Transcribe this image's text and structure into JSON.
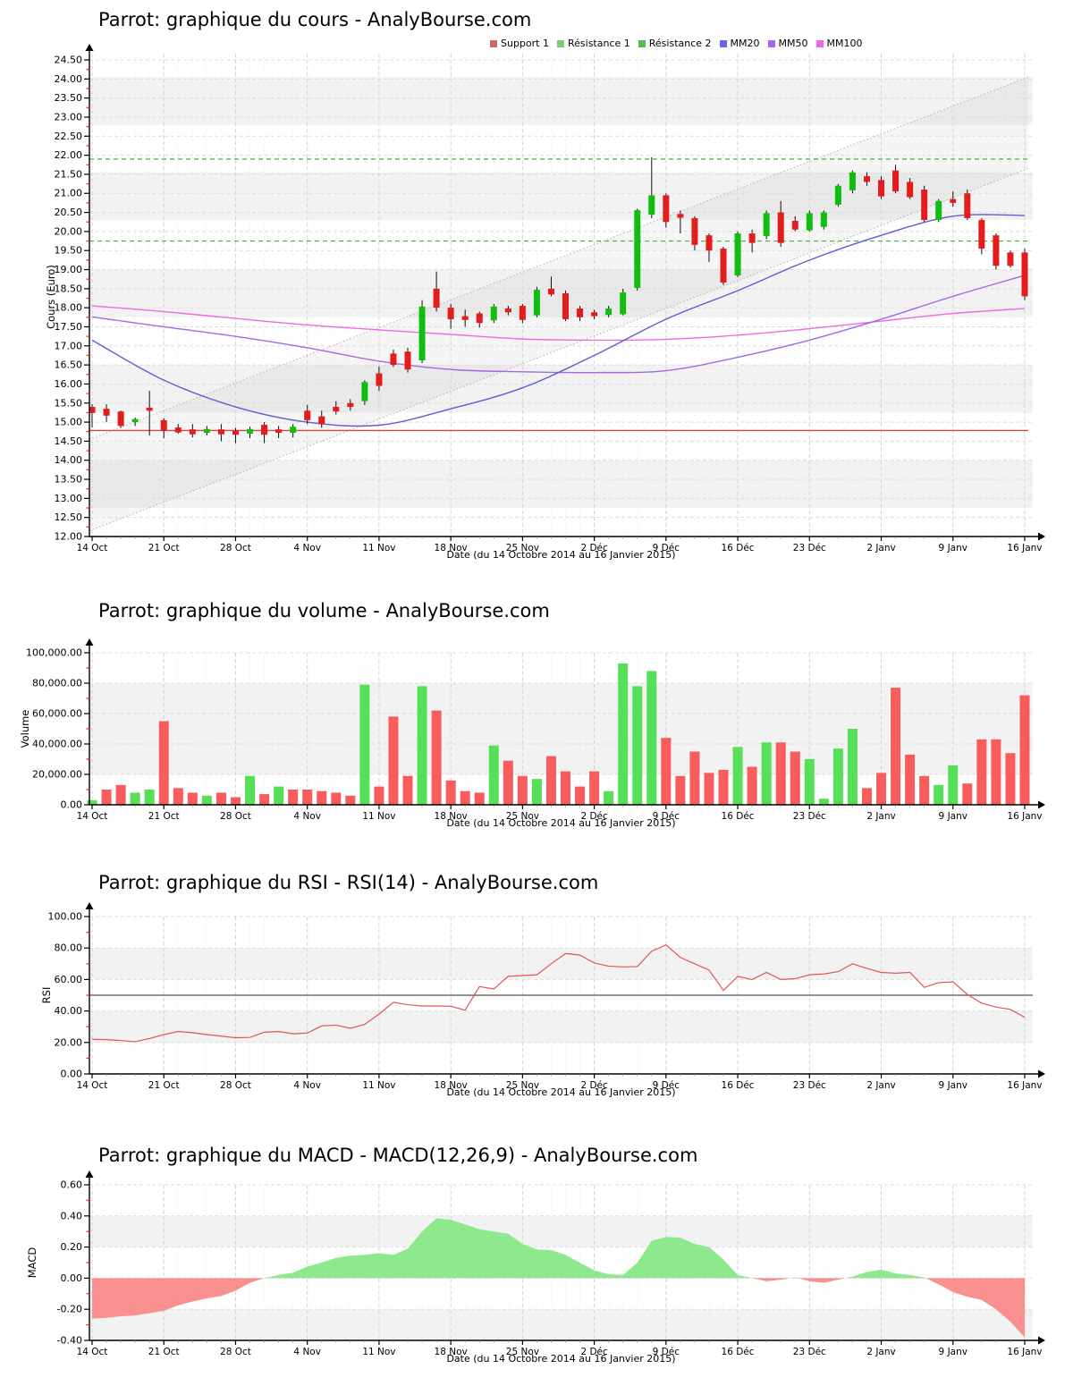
{
  "x_axis": {
    "label": "Date (du 14 Octobre 2014 au 16 Janvier 2015)",
    "tick_labels": [
      "14 Oct",
      "21 Oct",
      "28 Oct",
      "4 Nov",
      "11 Nov",
      "18 Nov",
      "25 Nov",
      "2 Déc",
      "9 Déc",
      "16 Déc",
      "23 Déc",
      "2 Janv",
      "9 Janv",
      "16 Janv"
    ],
    "tick_indices": [
      0,
      5,
      10,
      15,
      20,
      25,
      30,
      35,
      40,
      45,
      50,
      55,
      60,
      65
    ]
  },
  "legend": {
    "items": [
      {
        "label": "Support 1",
        "color": "#cc6666"
      },
      {
        "label": "Résistance 1",
        "color": "#77cc77"
      },
      {
        "label": "Résistance 2",
        "color": "#55bb55"
      },
      {
        "label": "MM20",
        "color": "#6666ee"
      },
      {
        "label": "MM50",
        "color": "#aa66ee"
      },
      {
        "label": "MM100",
        "color": "#ee66ee"
      }
    ]
  },
  "chart_data": [
    {
      "type": "candlestick",
      "title": "Parrot: graphique du cours - AnalyBourse.com",
      "ylabel": "Cours (Euro)",
      "ylim": [
        12.0,
        24.5
      ],
      "y_tick_step": 0.5,
      "y_tick_labels": [
        "24.50",
        "24.00",
        "23.50",
        "23.00",
        "22.50",
        "22.00",
        "21.50",
        "21.00",
        "20.50",
        "20.00",
        "19.50",
        "19.00",
        "18.50",
        "18.00",
        "17.50",
        "17.00",
        "16.50",
        "16.00",
        "15.50",
        "15.00",
        "14.50",
        "14.00",
        "13.50",
        "13.00",
        "12.50",
        "12.00"
      ],
      "up_color": "#12bd12",
      "down_color": "#e31c1c",
      "support1": 14.78,
      "resistance1": 19.75,
      "resistance2": 21.9,
      "channel": {
        "upper_start": 14.55,
        "upper_end": 24.05,
        "lower_start": 12.15,
        "lower_end": 21.65
      },
      "mm_sample_step": 5,
      "mm20": {
        "color": "#5d5dd8",
        "values": [
          17.15,
          16.1,
          15.4,
          15.0,
          14.92,
          15.35,
          15.9,
          16.75,
          17.7,
          18.45,
          19.25,
          19.9,
          20.4,
          20.42
        ]
      },
      "mm50": {
        "color": "#a06ae0",
        "values": [
          17.76,
          17.5,
          17.25,
          16.95,
          16.6,
          16.38,
          16.32,
          16.3,
          16.35,
          16.7,
          17.15,
          17.7,
          18.3,
          18.85
        ]
      },
      "mm100": {
        "color": "#ee6ae2",
        "values": [
          18.05,
          17.9,
          17.72,
          17.55,
          17.42,
          17.3,
          17.18,
          17.15,
          17.17,
          17.28,
          17.45,
          17.65,
          17.85,
          17.98
        ]
      },
      "candles": [
        [
          15.4,
          15.47,
          14.86,
          15.24
        ],
        [
          15.35,
          15.47,
          15.0,
          15.17
        ],
        [
          15.28,
          15.3,
          14.85,
          14.9
        ],
        [
          15.0,
          15.12,
          14.9,
          15.08
        ],
        [
          15.38,
          15.82,
          14.65,
          15.3
        ],
        [
          15.05,
          15.1,
          14.58,
          14.78
        ],
        [
          14.86,
          14.95,
          14.7,
          14.73
        ],
        [
          14.81,
          14.95,
          14.6,
          14.68
        ],
        [
          14.72,
          14.9,
          14.65,
          14.82
        ],
        [
          14.81,
          14.95,
          14.5,
          14.68
        ],
        [
          14.77,
          14.85,
          14.45,
          14.67
        ],
        [
          14.7,
          14.88,
          14.58,
          14.82
        ],
        [
          14.93,
          15.0,
          14.45,
          14.67
        ],
        [
          14.81,
          14.9,
          14.58,
          14.72
        ],
        [
          14.72,
          14.95,
          14.6,
          14.88
        ],
        [
          15.3,
          15.45,
          14.95,
          15.05
        ],
        [
          15.15,
          15.3,
          14.85,
          14.95
        ],
        [
          15.4,
          15.55,
          15.2,
          15.28
        ],
        [
          15.5,
          15.6,
          15.3,
          15.4
        ],
        [
          15.55,
          16.1,
          15.45,
          16.05
        ],
        [
          16.28,
          16.46,
          15.82,
          15.95
        ],
        [
          16.8,
          16.9,
          16.45,
          16.5
        ],
        [
          16.85,
          16.95,
          16.3,
          16.38
        ],
        [
          16.62,
          18.2,
          16.55,
          18.03
        ],
        [
          18.5,
          18.95,
          17.9,
          18.0
        ],
        [
          18.0,
          18.1,
          17.45,
          17.7
        ],
        [
          17.78,
          17.95,
          17.5,
          17.68
        ],
        [
          17.85,
          17.9,
          17.48,
          17.6
        ],
        [
          17.67,
          18.1,
          17.6,
          18.03
        ],
        [
          17.98,
          18.05,
          17.8,
          17.88
        ],
        [
          18.05,
          18.1,
          17.6,
          17.68
        ],
        [
          17.8,
          18.55,
          17.75,
          18.47
        ],
        [
          18.5,
          18.82,
          18.3,
          18.35
        ],
        [
          18.38,
          18.45,
          17.65,
          17.7
        ],
        [
          17.98,
          18.05,
          17.65,
          17.75
        ],
        [
          17.88,
          17.95,
          17.7,
          17.78
        ],
        [
          17.81,
          18.05,
          17.75,
          17.98
        ],
        [
          17.83,
          18.5,
          17.8,
          18.4
        ],
        [
          18.52,
          20.6,
          18.45,
          20.56
        ],
        [
          20.44,
          21.95,
          20.35,
          20.95
        ],
        [
          20.95,
          21.0,
          20.1,
          20.25
        ],
        [
          20.46,
          20.55,
          19.95,
          20.36
        ],
        [
          20.35,
          20.4,
          19.5,
          19.65
        ],
        [
          19.9,
          19.95,
          19.2,
          19.5
        ],
        [
          19.55,
          19.6,
          18.6,
          18.66
        ],
        [
          18.85,
          20.0,
          18.8,
          19.95
        ],
        [
          19.95,
          20.05,
          19.45,
          19.7
        ],
        [
          19.88,
          20.55,
          19.8,
          20.48
        ],
        [
          20.5,
          20.8,
          19.6,
          19.7
        ],
        [
          20.28,
          20.4,
          20.0,
          20.05
        ],
        [
          20.03,
          20.55,
          20.0,
          20.48
        ],
        [
          20.12,
          20.55,
          20.05,
          20.5
        ],
        [
          20.7,
          21.25,
          20.65,
          21.2
        ],
        [
          21.08,
          21.6,
          21.0,
          21.55
        ],
        [
          21.45,
          21.55,
          21.2,
          21.3
        ],
        [
          21.35,
          21.45,
          20.85,
          20.92
        ],
        [
          21.6,
          21.75,
          21.0,
          21.05
        ],
        [
          21.3,
          21.4,
          20.85,
          20.9
        ],
        [
          21.1,
          21.2,
          20.25,
          20.3
        ],
        [
          20.3,
          20.85,
          20.25,
          20.8
        ],
        [
          20.85,
          21.05,
          20.65,
          20.75
        ],
        [
          21.0,
          21.1,
          20.3,
          20.35
        ],
        [
          20.3,
          20.35,
          19.4,
          19.55
        ],
        [
          19.9,
          19.95,
          19.0,
          19.1
        ],
        [
          19.45,
          19.5,
          19.05,
          19.1
        ],
        [
          19.45,
          19.55,
          18.2,
          18.3
        ]
      ]
    },
    {
      "type": "bar",
      "title": "Parrot: graphique du volume - AnalyBourse.com",
      "ylabel": "Volume",
      "ylim": [
        0,
        100000
      ],
      "y_tick_labels": [
        "100,000.00",
        "80,000.00",
        "60,000.00",
        "40,000.00",
        "20,000.00",
        "0.00"
      ],
      "up_color": "#57e057",
      "down_color": "#f85c5c",
      "values": [
        [
          3000,
          "g"
        ],
        [
          10000,
          "r"
        ],
        [
          13000,
          "r"
        ],
        [
          8000,
          "g"
        ],
        [
          10000,
          "g"
        ],
        [
          55000,
          "r"
        ],
        [
          11000,
          "r"
        ],
        [
          8000,
          "r"
        ],
        [
          6000,
          "g"
        ],
        [
          8000,
          "r"
        ],
        [
          5000,
          "r"
        ],
        [
          19000,
          "g"
        ],
        [
          7000,
          "r"
        ],
        [
          12000,
          "g"
        ],
        [
          10000,
          "r"
        ],
        [
          10000,
          "r"
        ],
        [
          9000,
          "r"
        ],
        [
          8000,
          "r"
        ],
        [
          6000,
          "r"
        ],
        [
          79000,
          "g"
        ],
        [
          12000,
          "r"
        ],
        [
          58000,
          "r"
        ],
        [
          19000,
          "r"
        ],
        [
          78000,
          "g"
        ],
        [
          62000,
          "r"
        ],
        [
          16000,
          "r"
        ],
        [
          9000,
          "r"
        ],
        [
          8000,
          "r"
        ],
        [
          39000,
          "g"
        ],
        [
          29000,
          "r"
        ],
        [
          19000,
          "r"
        ],
        [
          17000,
          "g"
        ],
        [
          32000,
          "r"
        ],
        [
          22000,
          "r"
        ],
        [
          12000,
          "r"
        ],
        [
          22000,
          "r"
        ],
        [
          9000,
          "g"
        ],
        [
          93000,
          "g"
        ],
        [
          78000,
          "g"
        ],
        [
          88000,
          "g"
        ],
        [
          44000,
          "r"
        ],
        [
          19000,
          "r"
        ],
        [
          35000,
          "r"
        ],
        [
          21000,
          "r"
        ],
        [
          23000,
          "r"
        ],
        [
          38000,
          "g"
        ],
        [
          25000,
          "r"
        ],
        [
          41000,
          "g"
        ],
        [
          41000,
          "r"
        ],
        [
          35000,
          "r"
        ],
        [
          30000,
          "g"
        ],
        [
          4000,
          "g"
        ],
        [
          37000,
          "g"
        ],
        [
          50000,
          "g"
        ],
        [
          11000,
          "r"
        ],
        [
          21000,
          "r"
        ],
        [
          77000,
          "r"
        ],
        [
          33000,
          "r"
        ],
        [
          19000,
          "r"
        ],
        [
          13000,
          "g"
        ],
        [
          26000,
          "g"
        ],
        [
          14000,
          "r"
        ],
        [
          43000,
          "r"
        ],
        [
          43000,
          "r"
        ],
        [
          34000,
          "r"
        ],
        [
          72000,
          "r"
        ]
      ]
    },
    {
      "type": "line",
      "title": "Parrot: graphique du RSI - RSI(14) - AnalyBourse.com",
      "ylabel": "RSI",
      "ylim": [
        0,
        100
      ],
      "y_tick_labels": [
        "100.00",
        "80.00",
        "60.00",
        "40.00",
        "20.00",
        "0.00"
      ],
      "line_color": "#e25555",
      "midline": 50,
      "values": [
        22,
        21.8,
        21.2,
        20.5,
        22.5,
        25,
        27,
        26.2,
        25,
        24,
        23,
        23.2,
        26.5,
        27,
        25.5,
        26,
        30.5,
        31,
        29,
        31.5,
        38,
        45.5,
        44,
        43.2,
        43.2,
        43,
        40.5,
        55.5,
        54,
        62,
        62.5,
        63,
        70,
        76.5,
        75.5,
        70.5,
        68.5,
        68,
        68.2,
        78,
        82,
        74,
        70,
        66,
        53,
        62,
        60,
        64.5,
        60,
        60.5,
        63,
        63.5,
        65,
        70,
        67,
        64.5,
        64,
        64.5,
        55,
        58,
        58.5,
        50.5,
        45,
        42.5,
        41,
        36
      ]
    },
    {
      "type": "area",
      "title": "Parrot: graphique du MACD - MACD(12,26,9) - AnalyBourse.com",
      "ylabel": "MACD",
      "ylim": [
        -0.4,
        0.6
      ],
      "y_tick_labels": [
        "0.60",
        "0.40",
        "0.20",
        "0.00",
        "-0.20",
        "-0.40"
      ],
      "pos_color": "#8ee88e",
      "neg_color": "#f99090",
      "values": [
        -0.26,
        -0.255,
        -0.245,
        -0.24,
        -0.225,
        -0.21,
        -0.175,
        -0.15,
        -0.13,
        -0.115,
        -0.08,
        -0.03,
        0.0,
        0.02,
        0.035,
        0.075,
        0.1,
        0.13,
        0.145,
        0.15,
        0.16,
        0.15,
        0.19,
        0.3,
        0.385,
        0.375,
        0.345,
        0.315,
        0.3,
        0.285,
        0.22,
        0.185,
        0.18,
        0.15,
        0.1,
        0.05,
        0.025,
        0.02,
        0.1,
        0.24,
        0.265,
        0.26,
        0.22,
        0.2,
        0.12,
        0.02,
        0.0,
        -0.02,
        -0.01,
        0.005,
        -0.02,
        -0.03,
        -0.01,
        0.01,
        0.04,
        0.055,
        0.03,
        0.02,
        0.005,
        -0.04,
        -0.09,
        -0.12,
        -0.14,
        -0.2,
        -0.28,
        -0.38
      ]
    }
  ]
}
